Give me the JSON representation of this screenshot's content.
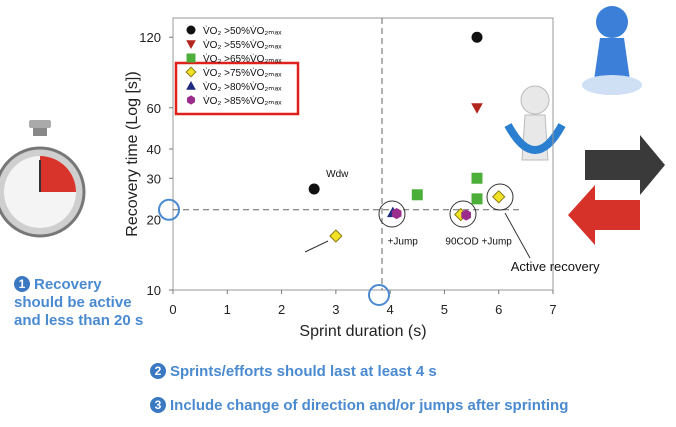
{
  "chart_data": {
    "type": "scatter",
    "xlabel": "Sprint duration (s)",
    "ylabel": "Recovery time (Log [s])",
    "xlim": [
      0,
      7
    ],
    "ylim": [
      10,
      145
    ],
    "log_y": true,
    "xticks": [
      0,
      1,
      2,
      3,
      4,
      5,
      6,
      7
    ],
    "yticks": [
      10,
      20,
      30,
      40,
      60,
      120
    ],
    "ref_x": 3.85,
    "ref_y": 22,
    "series": [
      {
        "name": "V̇O₂ >50%V̇O₂ₘₐₓ",
        "color": "#111111",
        "marker": "circle",
        "x": [
          2.6,
          5.6
        ],
        "values": [
          27,
          120
        ]
      },
      {
        "name": "V̇O₂ >55%V̇O₂ₘₐₓ",
        "color": "#b3261e",
        "marker": "triangle-down",
        "x": [
          5.6
        ],
        "values": [
          60
        ]
      },
      {
        "name": "V̇O₂ >65%V̇O₂ₘₐₓ",
        "color": "#4caf3a",
        "marker": "square",
        "x": [
          4.5,
          5.6,
          5.6
        ],
        "values": [
          25.5,
          30,
          24.5
        ]
      },
      {
        "name": "V̇O₂ >75%V̇O₂ₘₐₓ",
        "color": "#f2e226",
        "marker": "diamond",
        "x": [
          3.0,
          5.3,
          6.0
        ],
        "values": [
          17,
          21,
          25
        ]
      },
      {
        "name": "V̇O₂ >80%V̇O₂ₘₐₓ",
        "color": "#1f2b80",
        "marker": "triangle",
        "x": [
          4.05
        ],
        "values": [
          21.4
        ]
      },
      {
        "name": "V̇O₂ >85%V̇O₂ₘₐₓ",
        "color": "#9b2d8c",
        "marker": "hexagon",
        "x": [
          4.12,
          5.4
        ],
        "values": [
          21.2,
          20.9
        ]
      }
    ],
    "annotations": [
      {
        "text": "Wdw",
        "x": 2.6,
        "y": 27
      },
      {
        "text": "+Jump",
        "x": 4.1,
        "y": 21
      },
      {
        "text": "90COD +Jump",
        "x": 5.35,
        "y": 21
      },
      {
        "text": "Active recovery",
        "x": 6.0,
        "y": 25
      }
    ]
  },
  "notes": [
    {
      "number": "1",
      "text": "Recovery should be active and less than 20 s"
    },
    {
      "number": "2",
      "text": "Sprints/efforts should last at least 4 s"
    },
    {
      "number": "3",
      "text": "Include change of direction and/or jumps after sprinting"
    }
  ]
}
